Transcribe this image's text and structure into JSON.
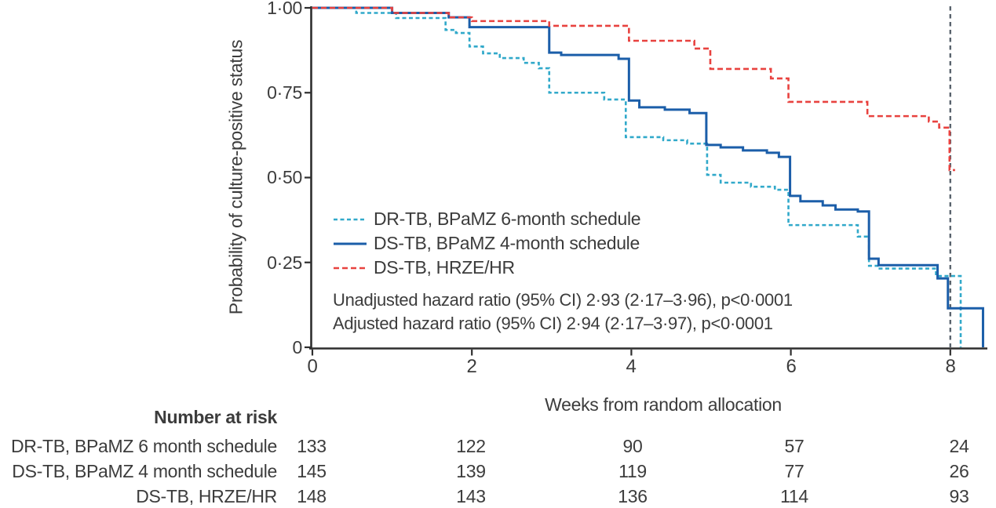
{
  "figure": {
    "y_axis": {
      "title": "Probability of culture-positive status",
      "ticks": [
        {
          "label": "1·00",
          "value": 1.0
        },
        {
          "label": "0·75",
          "value": 0.75
        },
        {
          "label": "0·50",
          "value": 0.5
        },
        {
          "label": "0·25",
          "value": 0.25
        },
        {
          "label": "0",
          "value": 0
        }
      ]
    },
    "x_axis": {
      "title": "Weeks from random allocation",
      "ticks": [
        {
          "label": "0",
          "value": 0
        },
        {
          "label": "2",
          "value": 2
        },
        {
          "label": "4",
          "value": 4
        },
        {
          "label": "6",
          "value": 6
        },
        {
          "label": "8",
          "value": 8
        }
      ]
    },
    "annotations": {
      "unadjusted": "Unadjusted hazard ratio (95% CI) 2·93 (2·17–3·96), p<0·0001",
      "adjusted": "Adjusted hazard ratio (95% CI) 2·94 (2·17–3·97), p<0·0001"
    }
  },
  "chart_data": {
    "type": "line",
    "subtype": "kaplan-meier-step",
    "title": "",
    "xlabel": "Weeks from random allocation",
    "ylabel": "Probability of culture-positive status",
    "xlim": [
      0,
      8.5
    ],
    "ylim": [
      0,
      1
    ],
    "xticks": [
      0,
      2,
      4,
      6,
      8
    ],
    "yticks": [
      0,
      0.25,
      0.5,
      0.75,
      1.0
    ],
    "grid": false,
    "legend_position": "inside-left-middle",
    "reference_line_x": 8,
    "series": [
      {
        "name": "DR-TB, BPaMZ 6-month schedule",
        "color": "#31A9CA",
        "style": "dashed",
        "points": [
          [
            0,
            1.0
          ],
          [
            0.55,
            0.985
          ],
          [
            1.05,
            0.97
          ],
          [
            1.67,
            0.935
          ],
          [
            1.8,
            0.926
          ],
          [
            1.97,
            0.886
          ],
          [
            2.14,
            0.866
          ],
          [
            2.35,
            0.852
          ],
          [
            2.65,
            0.838
          ],
          [
            2.84,
            0.822
          ],
          [
            2.97,
            0.75
          ],
          [
            3.66,
            0.73
          ],
          [
            3.93,
            0.619
          ],
          [
            4.4,
            0.61
          ],
          [
            4.7,
            0.6
          ],
          [
            4.95,
            0.508
          ],
          [
            5.12,
            0.485
          ],
          [
            5.5,
            0.473
          ],
          [
            5.8,
            0.464
          ],
          [
            5.97,
            0.36
          ],
          [
            6.84,
            0.326
          ],
          [
            6.98,
            0.24
          ],
          [
            7.1,
            0.232
          ],
          [
            7.82,
            0.21
          ],
          [
            8.13,
            0
          ]
        ]
      },
      {
        "name": "DS-TB, BPaMZ 4-month schedule",
        "color": "#1B5EA9",
        "style": "solid",
        "points": [
          [
            0,
            1.0
          ],
          [
            1.0,
            0.985
          ],
          [
            1.71,
            0.972
          ],
          [
            1.97,
            0.943
          ],
          [
            2.97,
            0.868
          ],
          [
            3.12,
            0.861
          ],
          [
            3.84,
            0.85
          ],
          [
            3.97,
            0.727
          ],
          [
            4.1,
            0.707
          ],
          [
            4.42,
            0.7
          ],
          [
            4.73,
            0.69
          ],
          [
            4.94,
            0.596
          ],
          [
            5.12,
            0.589
          ],
          [
            5.4,
            0.58
          ],
          [
            5.7,
            0.573
          ],
          [
            5.85,
            0.561
          ],
          [
            5.99,
            0.446
          ],
          [
            6.12,
            0.43
          ],
          [
            6.4,
            0.418
          ],
          [
            6.56,
            0.406
          ],
          [
            6.84,
            0.4
          ],
          [
            6.98,
            0.261
          ],
          [
            7.1,
            0.242
          ],
          [
            7.84,
            0.203
          ],
          [
            7.97,
            0.115
          ],
          [
            8.41,
            0
          ]
        ]
      },
      {
        "name": "DS-TB, HRZE/HR",
        "color": "#E8423F",
        "style": "dashed",
        "points": [
          [
            0,
            1.0
          ],
          [
            1.0,
            0.985
          ],
          [
            1.71,
            0.972
          ],
          [
            2.0,
            0.961
          ],
          [
            2.97,
            0.947
          ],
          [
            3.97,
            0.903
          ],
          [
            4.79,
            0.88
          ],
          [
            4.99,
            0.82
          ],
          [
            5.75,
            0.792
          ],
          [
            5.97,
            0.723
          ],
          [
            6.96,
            0.681
          ],
          [
            7.73,
            0.665
          ],
          [
            7.86,
            0.647
          ],
          [
            7.99,
            0.522
          ],
          [
            8.06,
            0.522
          ]
        ]
      }
    ]
  },
  "number_at_risk": {
    "header": "Number at risk",
    "rows": [
      {
        "label": "DR-TB, BPaMZ 6 month schedule",
        "values": [
          "133",
          "122",
          "90",
          "57",
          "24"
        ]
      },
      {
        "label": "DS-TB, BPaMZ 4 month schedule",
        "values": [
          "145",
          "139",
          "119",
          "77",
          "26"
        ]
      },
      {
        "label": "DS-TB, HRZE/HR",
        "values": [
          "148",
          "143",
          "136",
          "114",
          "93"
        ]
      }
    ]
  },
  "colors": {
    "dr_tb_bpamz6": "#31A9CA",
    "ds_tb_bpamz4": "#1B5EA9",
    "ds_tb_hrze": "#E8423F",
    "reference_line": "#59636D",
    "axis": "#2E2E2E",
    "text": "#3C3C3C"
  }
}
